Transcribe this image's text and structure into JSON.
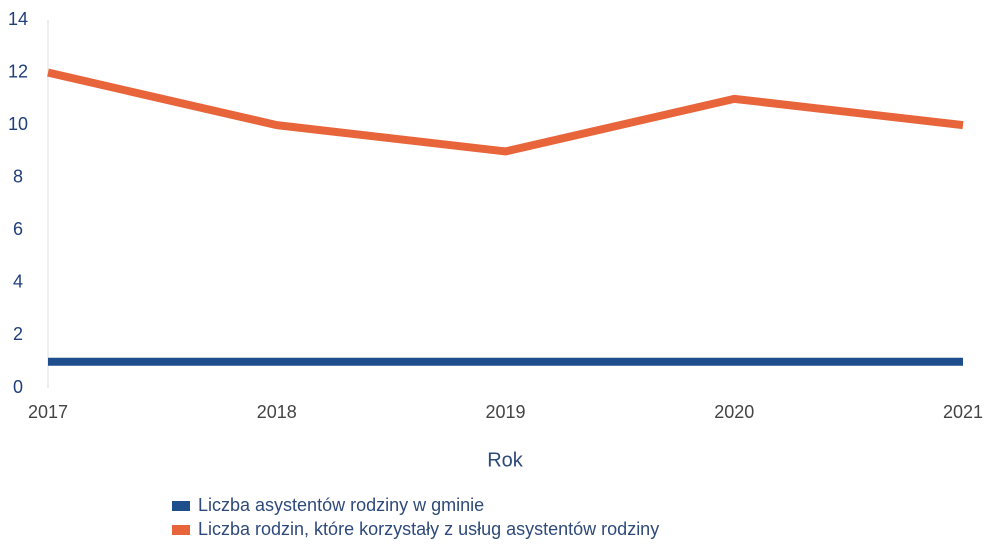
{
  "chart_data": {
    "type": "line",
    "categories": [
      "2017",
      "2018",
      "2019",
      "2020",
      "2021"
    ],
    "x_label": "Rok",
    "series": [
      {
        "name": "Liczba asystentów rodziny w gminie",
        "color": "#1f4e8c",
        "values": [
          1,
          1,
          1,
          1,
          1
        ]
      },
      {
        "name": "Liczba rodzin, które korzystały z usług asystentów rodziny",
        "color": "#e8643a",
        "values": [
          12,
          10,
          9,
          11,
          10
        ]
      }
    ],
    "ylim": [
      0,
      14
    ],
    "yticks": [
      0,
      2,
      4,
      6,
      8,
      10,
      12,
      14
    ],
    "grid": false,
    "legend": "bottom"
  }
}
